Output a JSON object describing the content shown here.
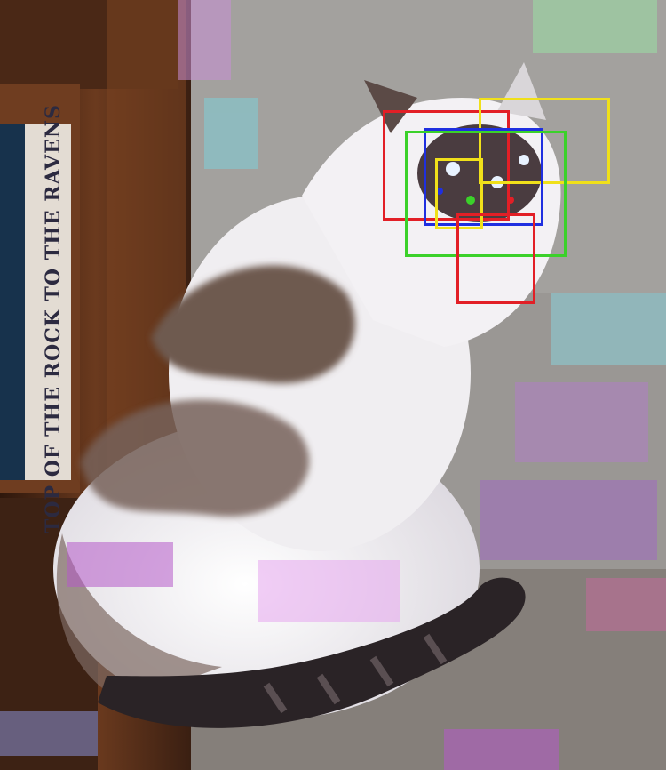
{
  "image": {
    "book_spine_text": "TOP OF THE ROCK TO THE RAVENS",
    "palette": {
      "wall": "#9a9794",
      "carpet": "#7f7b77",
      "cabinet_dark": "#3a1f12",
      "cabinet_mid": "#6b3a1e",
      "cat_white": "#f2f0f2",
      "cat_brown": "#6e5a50",
      "tail_dark": "#2a2326"
    }
  },
  "detections": [
    {
      "color": "#e21f26"
    },
    {
      "color": "#f0e01a"
    },
    {
      "color": "#1f2fe0"
    },
    {
      "color": "#3bd12a"
    },
    {
      "color": "#f0e01a"
    },
    {
      "color": "#e21f26"
    }
  ]
}
